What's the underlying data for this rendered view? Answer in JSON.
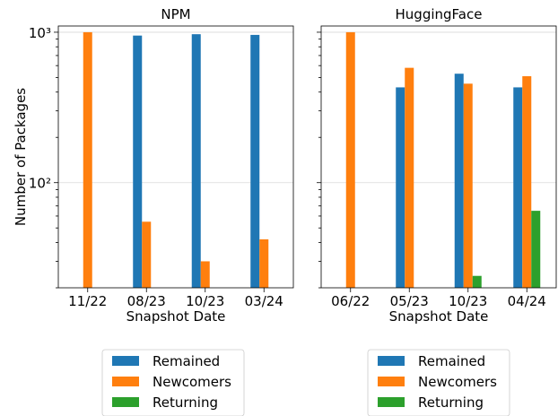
{
  "chart_data": [
    {
      "type": "bar",
      "title": "NPM",
      "xlabel": "Snapshot Date",
      "ylabel": "Number of Packages",
      "yscale": "log",
      "ylim": [
        20,
        1100
      ],
      "ytick_labels": [
        "10³",
        "10²"
      ],
      "ytick_values": [
        1000,
        100
      ],
      "grid": true,
      "categories": [
        "11/22",
        "08/23",
        "10/23",
        "03/24"
      ],
      "series": [
        {
          "name": "Remained",
          "color": "#1f77b4",
          "values": [
            null,
            950,
            970,
            960
          ]
        },
        {
          "name": "Newcomers",
          "color": "#ff7f0e",
          "values": [
            1000,
            55,
            30,
            42
          ]
        },
        {
          "name": "Returning",
          "color": "#2ca02c",
          "values": [
            null,
            null,
            null,
            null
          ]
        }
      ],
      "legend": "below"
    },
    {
      "type": "bar",
      "title": "HuggingFace",
      "xlabel": "Snapshot Date",
      "ylabel": "",
      "yscale": "log",
      "ylim": [
        20,
        1100
      ],
      "grid": true,
      "categories": [
        "06/22",
        "05/23",
        "10/23",
        "04/24"
      ],
      "series": [
        {
          "name": "Remained",
          "color": "#1f77b4",
          "values": [
            null,
            430,
            530,
            430
          ]
        },
        {
          "name": "Newcomers",
          "color": "#ff7f0e",
          "values": [
            1000,
            580,
            455,
            510
          ]
        },
        {
          "name": "Returning",
          "color": "#2ca02c",
          "values": [
            null,
            null,
            24,
            65
          ]
        }
      ],
      "legend": "below"
    }
  ]
}
